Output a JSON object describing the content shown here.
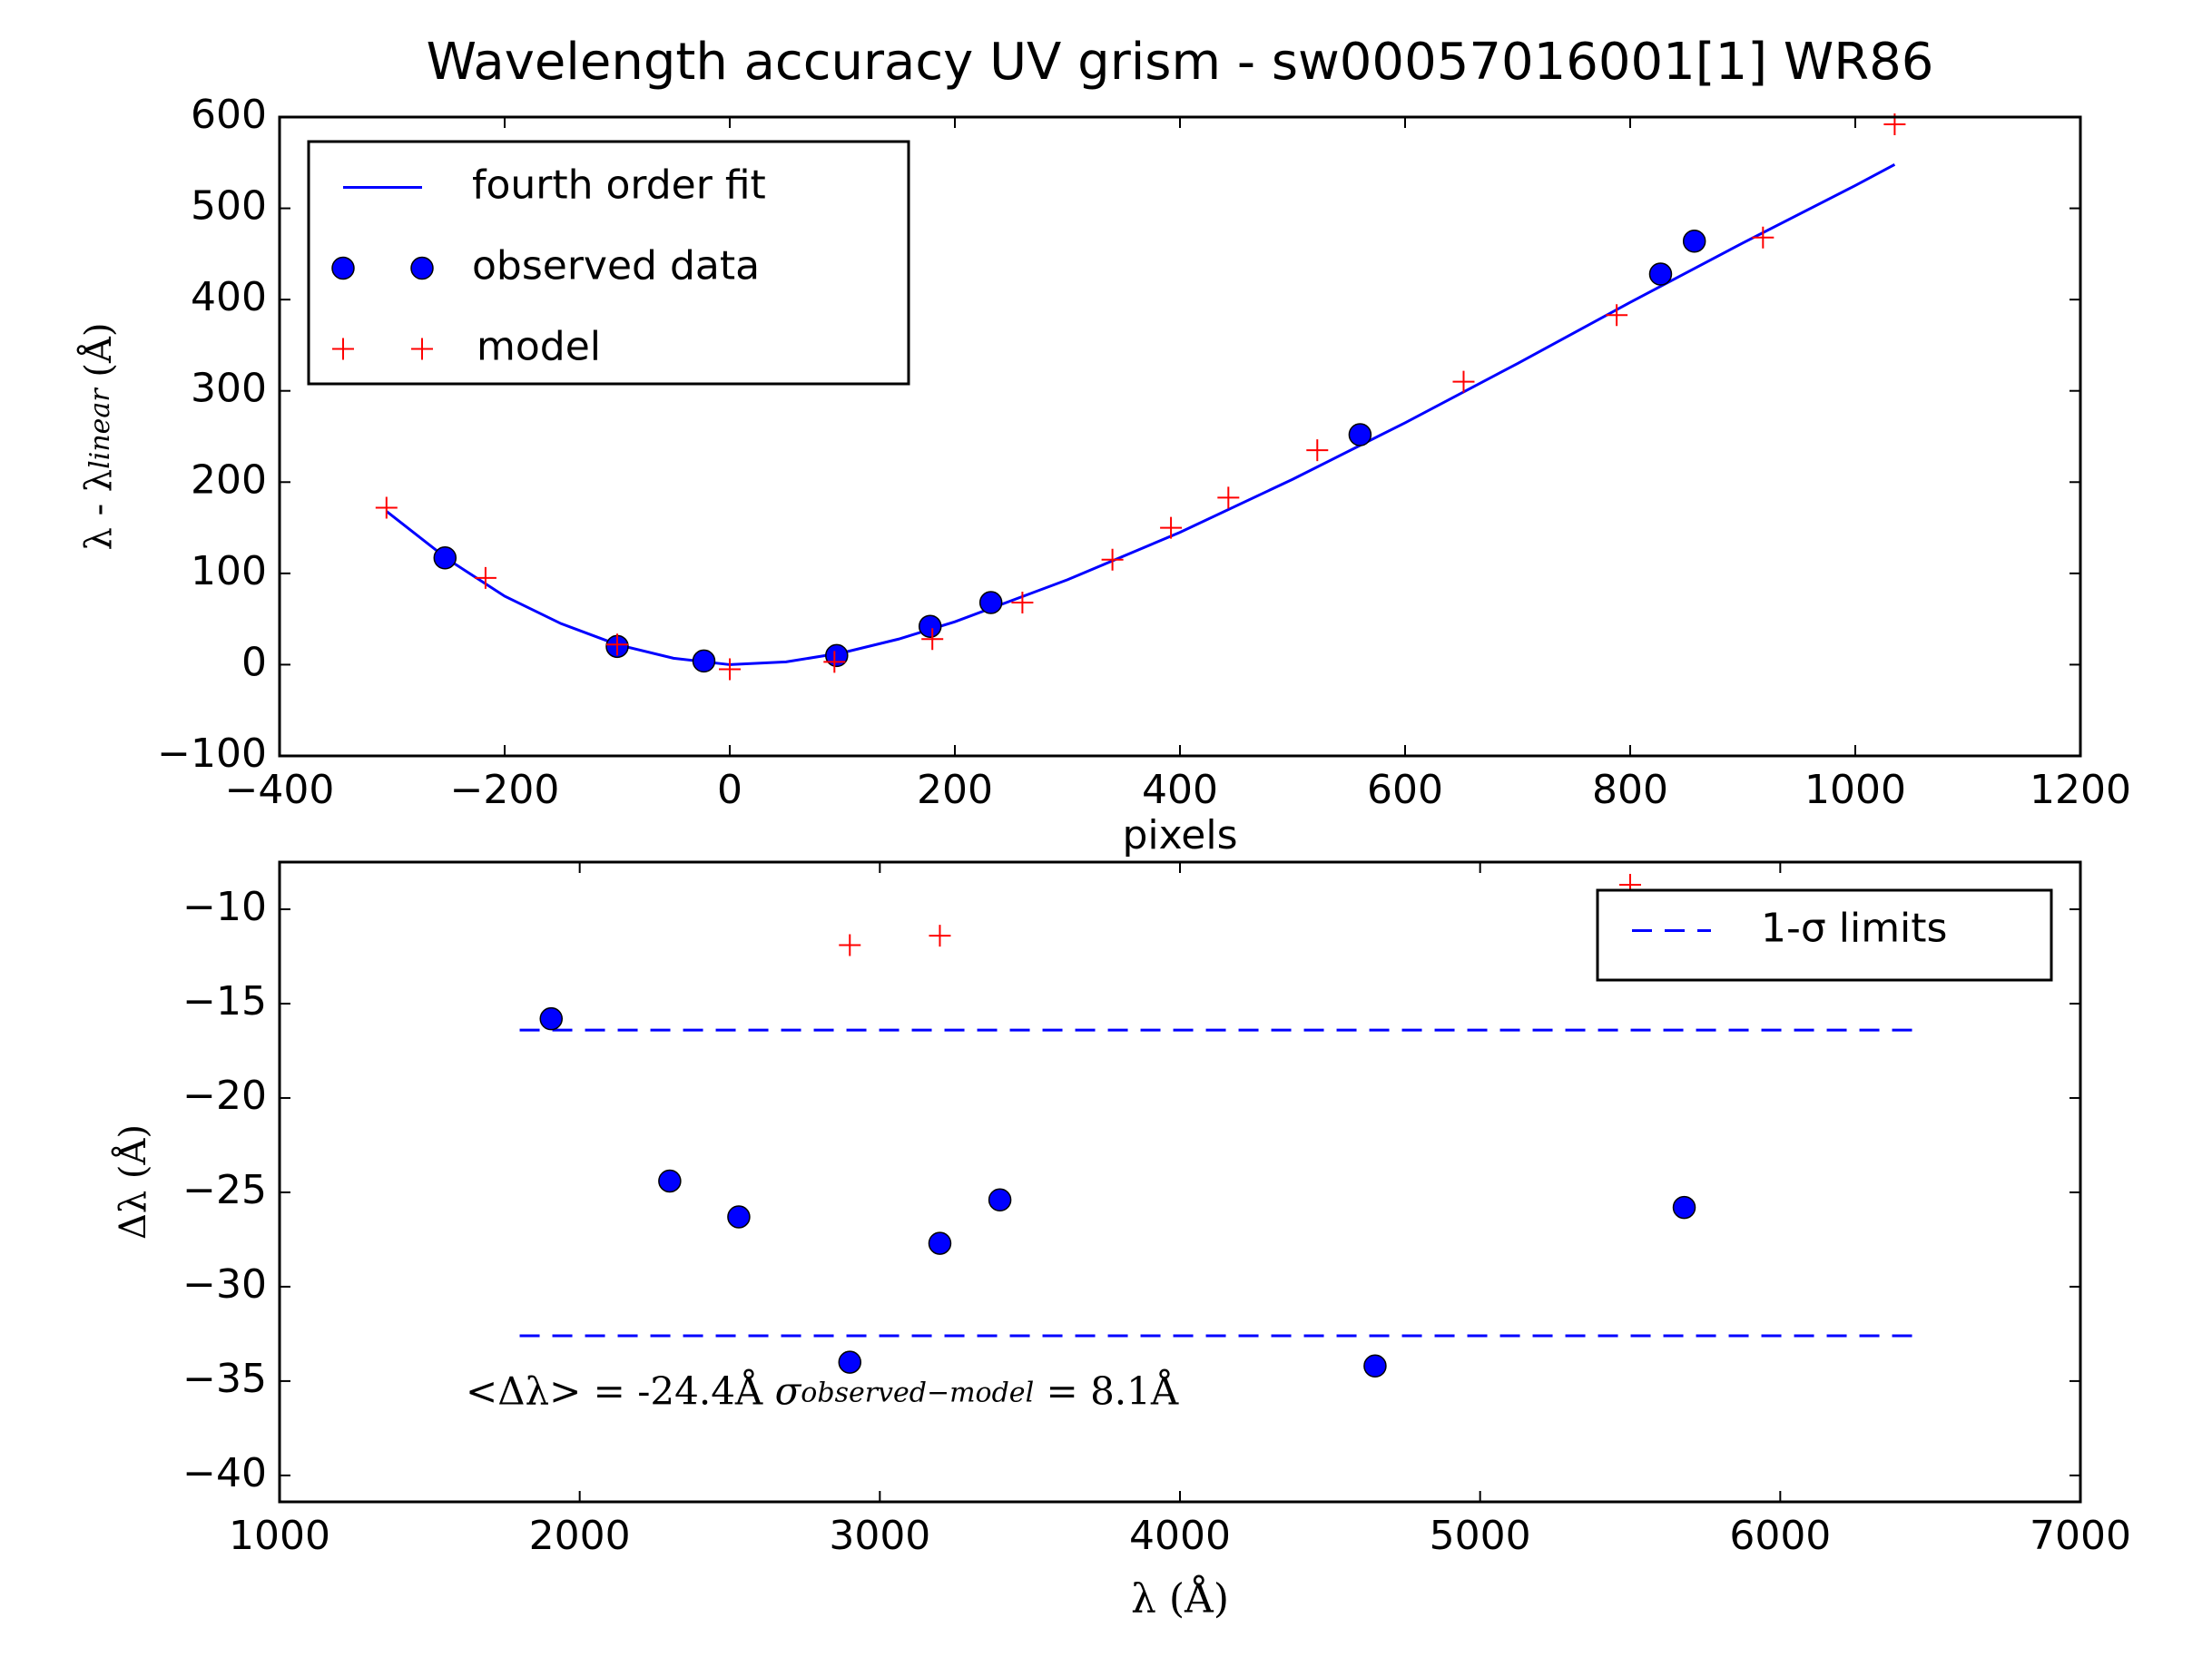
{
  "chart_data": [
    {
      "type": "scatter",
      "title": "Wavelength accuracy UV grism - sw00057016001[1] WR86",
      "xlabel": "pixels",
      "ylabel": [
        "λ - λ",
        "linear",
        "  (Å)"
      ],
      "xlim": [
        -400,
        1200
      ],
      "ylim": [
        -100,
        600
      ],
      "xticks": [
        {
          "value": -400,
          "label": "−400"
        },
        {
          "value": -200,
          "label": "−200"
        },
        0,
        200,
        400,
        600,
        800,
        1000,
        1200
      ],
      "yticks": [
        {
          "value": -100,
          "label": "−100"
        },
        0,
        100,
        200,
        300,
        400,
        500,
        600
      ],
      "legend": "upper left",
      "series": [
        {
          "name": "fourth order fit",
          "style": "line",
          "color": "#0000ff",
          "x": [
            -305,
            -250,
            -200,
            -150,
            -100,
            -50,
            0,
            50,
            100,
            150,
            200,
            300,
            400,
            500,
            600,
            700,
            800,
            900,
            1000,
            1035
          ],
          "values": [
            168,
            115,
            75,
            45,
            22,
            7,
            0,
            3,
            13,
            28,
            47,
            93,
            145,
            203,
            265,
            330,
            397,
            462,
            525,
            548
          ]
        },
        {
          "name": "observed data",
          "style": "circle",
          "color": "#0000ff",
          "x": [
            -253,
            -100,
            -23,
            95,
            178,
            232,
            560,
            827,
            857
          ],
          "values": [
            117,
            20,
            4,
            10,
            42,
            68,
            252,
            428,
            464
          ]
        },
        {
          "name": "model",
          "style": "plus",
          "color": "#ff0000",
          "x": [
            -305,
            -217,
            -100,
            0,
            93,
            180,
            260,
            340,
            392,
            443,
            522,
            652,
            788,
            918,
            1035
          ],
          "values": [
            172,
            95,
            22,
            -5,
            3,
            28,
            68,
            115,
            150,
            183,
            235,
            310,
            383,
            468,
            592
          ]
        }
      ]
    },
    {
      "type": "scatter",
      "xlabel": "λ (Å)",
      "ylabel": [
        "Δλ (Å)"
      ],
      "annotation": [
        "<Δλ> = -24.4Å  ",
        "σ",
        "observed−model",
        " = 8.1Å"
      ],
      "xlim": [
        1000,
        7000
      ],
      "ylim": [
        -41.4,
        -7.5
      ],
      "xticks": [
        1000,
        2000,
        3000,
        4000,
        5000,
        6000,
        7000
      ],
      "yticks": [
        {
          "value": -40,
          "label": "−40"
        },
        {
          "value": -35,
          "label": "−35"
        },
        {
          "value": -30,
          "label": "−30"
        },
        {
          "value": -25,
          "label": "−25"
        },
        {
          "value": -20,
          "label": "−20"
        },
        {
          "value": -15,
          "label": "−15"
        },
        {
          "value": -10,
          "label": "−10"
        }
      ],
      "legend": "upper right",
      "series": [
        {
          "name": "1-σ limits",
          "style": "dashed",
          "color": "#0000ff",
          "x": [
            1800,
            6450,
            null,
            1800,
            6450
          ],
          "values": [
            -16.4,
            -16.4,
            null,
            -32.6,
            -32.6
          ]
        },
        {
          "style": "circle",
          "color": "#0000ff",
          "x": [
            1905,
            2300,
            2530,
            2900,
            3200,
            3400,
            4650,
            5680
          ],
          "values": [
            -15.8,
            -24.4,
            -26.3,
            -34,
            -27.7,
            -25.4,
            -34.2,
            -25.8
          ]
        },
        {
          "style": "plus",
          "color": "#ff0000",
          "x": [
            2900,
            3200,
            5500
          ],
          "values": [
            -11.9,
            -11.4,
            -8.7
          ]
        }
      ]
    }
  ]
}
